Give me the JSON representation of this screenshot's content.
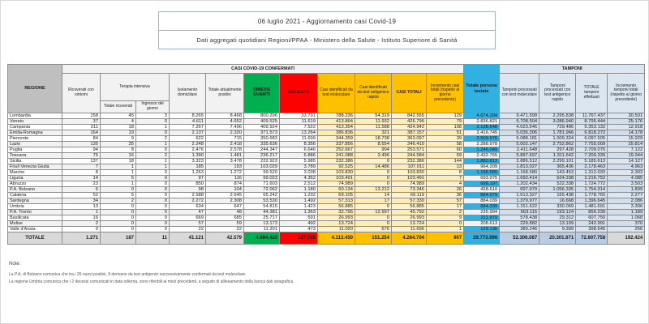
{
  "header": {
    "title": "06 luglio 2021 - Aggiornamento casi Covid-19",
    "subtitle": "Dati aggregati quotidiani Regioni/PPAA - Ministero della Salute - Istituto Superiore di Sanità"
  },
  "table": {
    "band_casi": "CASI COVID-19 CONFERMATI",
    "band_tamponi": "TAMPONI",
    "col_headers": {
      "regione": "REGIONE",
      "ricoverati": "Ricoverati con sintomi",
      "terapia_intensiva": "Terapia intensiva",
      "ti_totale": "Totale ricoverati",
      "ti_ingresso": "Ingresso del giorno",
      "isolamento": "Isolamento domiciliare",
      "attuali": "Totale attualmente positivi",
      "dimessi": "DIMESSI GUARITI",
      "deceduti": "DECEDUTI",
      "casi_mol": "Casi identificati da test molecolare",
      "casi_ant": "Casi identificati da test antigenico rapido",
      "casi_tot": "CASI TOTALI",
      "incr_casi": "Incremento casi totali (rispetto al giorno precedente)",
      "testate": "Totale persone testate",
      "tamp_mol": "Tamponi processati con test molecolare",
      "tamp_ant": "Tamponi processati con test antigenico rapido",
      "tamp_tot": "TOTALE tamponi effettuati",
      "incr_tamp": "Incremento tamponi totali (rispetto al giorno precedente)"
    },
    "rows": [
      [
        "Lombardia",
        "158",
        "45",
        "3",
        "8.265",
        "8.468",
        "800.296",
        "33.791",
        "788.236",
        "54.319",
        "842.555",
        "129",
        "4.674.204",
        "9.471.599",
        "2.295.838",
        "11.767.437",
        "30.501"
      ],
      [
        "Veneto",
        "37",
        "4",
        "0",
        "4.611",
        "4.652",
        "409.525",
        "11.619",
        "413.864",
        "11.932",
        "425.796",
        "79",
        "2.836.821",
        "5.708.504",
        "3.086.940",
        "8.795.444",
        "25.176"
      ],
      [
        "Campania",
        "211",
        "18",
        "1",
        "7.267",
        "7.496",
        "409.924",
        "7.522",
        "413.354",
        "11.588",
        "424.942",
        "108",
        "2.138.648",
        "4.623.646",
        "729.486",
        "5.353.132",
        "12.918"
      ],
      [
        "Emilia-Romagna",
        "164",
        "19",
        "0",
        "2.137",
        "2.320",
        "371.573",
        "13.264",
        "386.836",
        "321",
        "387.157",
        "51",
        "2.416.745",
        "5.036.306",
        "1.781.966",
        "6.818.272",
        "14.178"
      ],
      [
        "Piemonte",
        "84",
        "9",
        "2",
        "622",
        "715",
        "350.683",
        "11.699",
        "344.359",
        "18.738",
        "363.097",
        "39",
        "2.509.976",
        "5.088.181",
        "1.009.324",
        "6.097.505",
        "15.929"
      ],
      [
        "Lazio",
        "135",
        "35",
        "1",
        "2.248",
        "2.418",
        "335.636",
        "8.356",
        "337.856",
        "8.554",
        "346.410",
        "58",
        "2.288.978",
        "5.002.147",
        "2.752.862",
        "7.755.009",
        "25.814"
      ],
      [
        "Puglia",
        "94",
        "8",
        "0",
        "2.476",
        "2.578",
        "244.347",
        "6.646",
        "252.667",
        "904",
        "253.571",
        "60",
        "1.246.049",
        "2.411.648",
        "297.428",
        "2.709.076",
        "7.122"
      ],
      [
        "Toscana",
        "75",
        "16",
        "2",
        "1.390",
        "1.481",
        "236.217",
        "6.886",
        "241.088",
        "3.496",
        "244.584",
        "59",
        "2.432.765",
        "5.897.697",
        "1.311.642",
        "7.209.339",
        "19.344"
      ],
      [
        "Sicilia",
        "137",
        "18",
        "1",
        "3.323",
        "3.478",
        "222.923",
        "5.985",
        "232.386",
        "0",
        "232.386",
        "144",
        "1.880.813",
        "2.886.512",
        "2.299.101",
        "5.185.613",
        "14.127"
      ],
      [
        "Friuli Venezia Giulia",
        "7",
        "1",
        "1",
        "185",
        "193",
        "103.029",
        "3.789",
        "92.525",
        "14.486",
        "107.011",
        "13",
        "964.209",
        "1.813.027",
        "365.436",
        "2.178.463",
        "4.963"
      ],
      [
        "Marche",
        "8",
        "1",
        "0",
        "1.263",
        "1.272",
        "99.520",
        "3.038",
        "103.830",
        "0",
        "103.830",
        "8",
        "1.188.580",
        "1.168.580",
        "143.453",
        "1.312.033",
        "2.303"
      ],
      [
        "Liguria",
        "14",
        "5",
        "0",
        "97",
        "116",
        "99.023",
        "4.352",
        "103.491",
        "0",
        "103.491",
        "7",
        "693.975",
        "1.692.414",
        "524.338",
        "2.216.752",
        "4.085"
      ],
      [
        "Abruzzo",
        "23",
        "1",
        "0",
        "850",
        "874",
        "71.603",
        "2.512",
        "74.989",
        "0",
        "74.989",
        "4",
        "698.197",
        "1.202.434",
        "522.338",
        "1.724.772",
        "3.503"
      ],
      [
        "P.A. Bolzano",
        "6",
        "0",
        "0",
        "98",
        "104",
        "72.062",
        "1.180",
        "60.134",
        "13.212",
        "73.346",
        "26",
        "428.610",
        "697.979",
        "1.056.335",
        "1.754.314",
        "1.899"
      ],
      [
        "Calabria",
        "52",
        "5",
        "0",
        "2.588",
        "2.645",
        "65.242",
        "1.232",
        "69.105",
        "14",
        "69.119",
        "36",
        "894.079",
        "1.613.327",
        "165.438",
        "1.778.765",
        "2.277"
      ],
      [
        "Sardegna",
        "34",
        "2",
        "0",
        "2.272",
        "2.308",
        "53.530",
        "1.492",
        "57.313",
        "17",
        "57.330",
        "57",
        "884.039",
        "1.379.977",
        "16.668",
        "1.396.645",
        "2.086"
      ],
      [
        "Umbria",
        "13",
        "0",
        "0",
        "634",
        "647",
        "54.815",
        "1.423",
        "56.885",
        "0",
        "56.885",
        "17",
        "684.339",
        "1.151.622",
        "330.069",
        "1.481.691",
        "3.306"
      ],
      [
        "P.A. Trento",
        "1",
        "0",
        "0",
        "47",
        "48",
        "44.381",
        "1.363",
        "32.795",
        "12.997",
        "45.792",
        "2",
        "235.994",
        "663.115",
        "193.124",
        "856.239",
        "1.189"
      ],
      [
        "Basilicata",
        "16",
        "0",
        "0",
        "669",
        "685",
        "25.717",
        "591",
        "26.993",
        "0",
        "26.993",
        "9",
        "211.970",
        "578.438",
        "29.312",
        "607.750",
        "1.068"
      ],
      [
        "Molise",
        "2",
        "0",
        "0",
        "57",
        "59",
        "13.173",
        "492",
        "13.724",
        "0",
        "13.724",
        "0",
        "208.613",
        "229.882",
        "13.109",
        "242.991",
        "370"
      ],
      [
        "Valle d'Aosta",
        "0",
        "0",
        "0",
        "22",
        "22",
        "11.201",
        "473",
        "11.020",
        "676",
        "11.696",
        "1",
        "129.136",
        "389.246",
        "9.399",
        "398.645",
        "266"
      ]
    ],
    "totale": [
      "TOTALE",
      "1.271",
      "187",
      "11",
      "41.121",
      "42.579",
      "4.094.420",
      "127.705",
      "4.113.450",
      "151.254",
      "4.264.704",
      "907",
      "29.773.996",
      "52.306.087",
      "20.301.671",
      "72.607.758",
      "192.424"
    ]
  },
  "notes": {
    "label": "Note:",
    "lines": [
      "La P.A. di Bolzano comunica che tra i 26 nuovi positivi, 9 derivano da test antigenici successivamente confermati da test molecolare.",
      "La regione Umbria comunica che i 2 decessi comunicati in data odierna, sono riferibili ai mesi precedenti, a seguito di allineamento della banca dati anagrafica."
    ]
  },
  "colors": {
    "yellow_header": "#FFC000",
    "yellow_data": "#FFF2CC",
    "green": "#00B050",
    "red": "#FF0000",
    "cyan": "#31B0E2",
    "pale_blue": "#DCE6F1",
    "gray_header": "#BFBFBF",
    "gray_totale": "#D9D9D9"
  }
}
